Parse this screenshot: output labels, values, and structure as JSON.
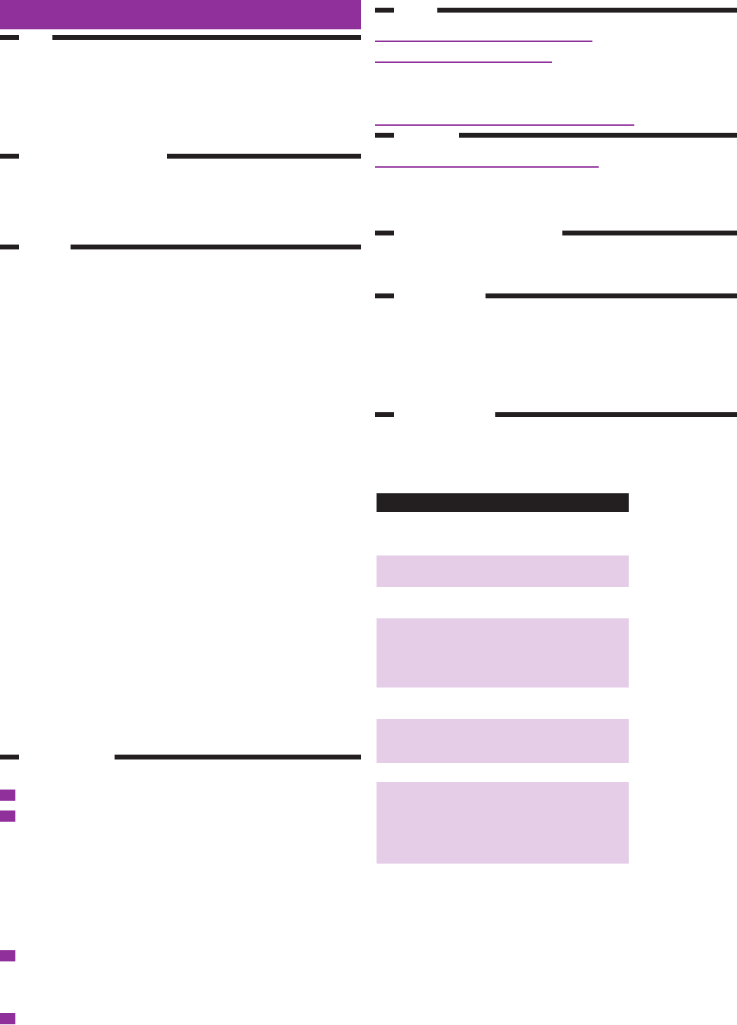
{
  "colors": {
    "brand_purple": "#90309a",
    "rule_black": "#231f20",
    "panel_lilac": "#e5cde8",
    "background": "#ffffff"
  }
}
